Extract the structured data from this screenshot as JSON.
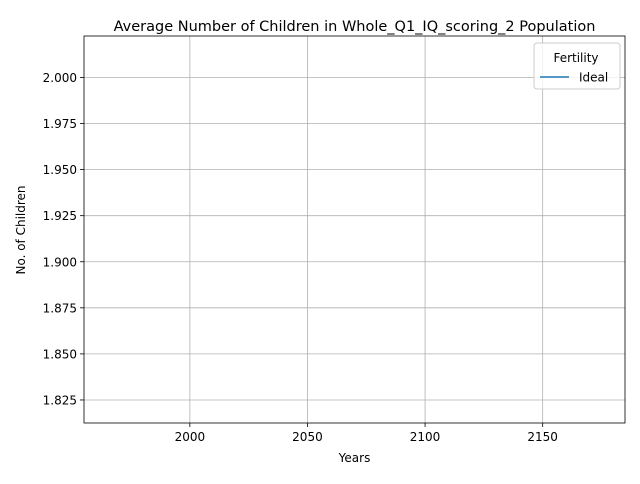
{
  "chart_data": {
    "type": "line",
    "title": "Average Number of Children in Whole_Q1_IQ_scoring_2 Population",
    "xlabel": "Years",
    "ylabel": "No. of Children",
    "xlim": [
      1955,
      2185
    ],
    "ylim": [
      1.8125,
      2.0225
    ],
    "xticks": [
      2000,
      2050,
      2100,
      2150
    ],
    "yticks": [
      1.825,
      1.85,
      1.875,
      1.9,
      1.925,
      1.95,
      1.975,
      2.0
    ],
    "ytick_labels": [
      "1.825",
      "1.850",
      "1.875",
      "1.900",
      "1.925",
      "1.950",
      "1.975",
      "2.000"
    ],
    "grid": true,
    "legend": {
      "title": "Fertility",
      "placement": "top-right",
      "entries": [
        {
          "name": "Ideal",
          "color": "#1f77b4"
        }
      ]
    },
    "series": [
      {
        "name": "Ideal",
        "color": "#1f77b4",
        "x": [],
        "y": []
      }
    ]
  }
}
